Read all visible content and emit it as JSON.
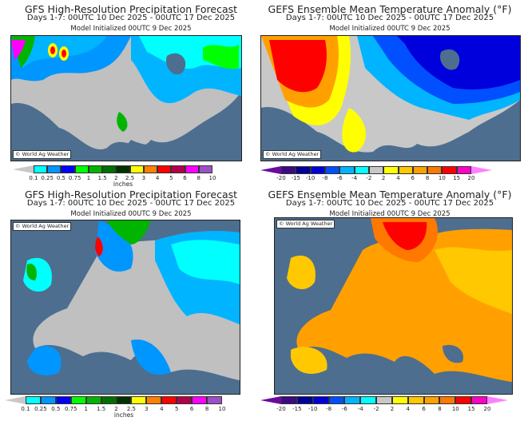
{
  "panels": [
    {
      "title": "GFS High-Resolution Precipitation Forecast",
      "subtitle": "Days 1-7: 00UTC 10 Dec 2025 - 00UTC 17 Dec 2025",
      "init": "Model Initialized 00UTC 9 Dec 2025",
      "credit": "© World Ag Weather",
      "region": "United States",
      "scale": "precip"
    },
    {
      "title": "GEFS Ensemble Mean Temperature Anomaly (°F)",
      "subtitle": "Days 1-7: 00UTC 10 Dec 2025 - 00UTC 17 Dec 2025",
      "init": "Model Initialized 00UTC 9 Dec 2025",
      "credit": "© World Ag Weather",
      "region": "United States",
      "scale": "temp"
    },
    {
      "title": "GFS High-Resolution Precipitation Forecast",
      "subtitle": "Days 1-7: 00UTC 10 Dec 2025 - 00UTC 17 Dec 2025",
      "init": "Model Initialized 00UTC 9 Dec 2025",
      "credit": "© World Ag Weather",
      "region": "Europe",
      "scale": "precip"
    },
    {
      "title": "GEFS Ensemble Mean Temperature Anomaly (°F)",
      "subtitle": "Days 1-7: 00UTC 10 Dec 2025 - 00UTC 17 Dec 2025",
      "init": "Model Initialized 00UTC 9 Dec 2025",
      "credit": "© World Ag Weather",
      "region": "Europe",
      "scale": "temp"
    }
  ],
  "scales": {
    "precip": {
      "unit": "inches",
      "ticks": [
        "0.1",
        "0.25",
        "0.5",
        "0.75",
        "1",
        "1.5",
        "2",
        "2.5",
        "3",
        "4",
        "5",
        "6",
        "8",
        "10"
      ],
      "colors": [
        "#00ffff",
        "#0096ff",
        "#0000ff",
        "#00ff00",
        "#00b400",
        "#007000",
        "#003200",
        "#ffff00",
        "#ff8000",
        "#ff0000",
        "#b4004a",
        "#ff00ff",
        "#9b50c8"
      ],
      "under": "#c8c8c8",
      "over": "#ffffff"
    },
    "temp": {
      "unit": "",
      "ticks": [
        "-20",
        "-15",
        "-10",
        "-8",
        "-6",
        "-4",
        "-2",
        "2",
        "4",
        "6",
        "8",
        "10",
        "15",
        "20"
      ],
      "colors": [
        "#3c0a82",
        "#000096",
        "#0000dc",
        "#0050ff",
        "#00b4ff",
        "#00ffff",
        "#c8c8c8",
        "#ffff00",
        "#ffc800",
        "#ffa000",
        "#ff7800",
        "#ff0000",
        "#ff00c8"
      ],
      "under": "#6a0aa0",
      "over": "#ff80ff"
    }
  },
  "colors": {
    "ocean": "#4d6e8f",
    "land_no_data": "#c0c0c0"
  }
}
